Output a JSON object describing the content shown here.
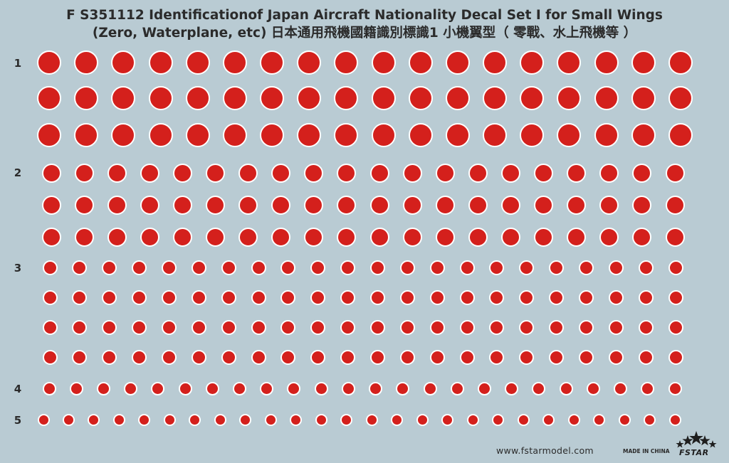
{
  "title": {
    "line1": "F S351112 Identificationof Japan Aircraft Nationality Decal Set I for Small Wings",
    "line2": "(Zero, Waterplane, etc) 日本通用飛機國籍識別標識1 小機翼型（ 零戰、水上飛機等 ）"
  },
  "groups": [
    {
      "label": "1",
      "rows": 3,
      "count": 18
    },
    {
      "label": "2",
      "rows": 3,
      "count": 20
    },
    {
      "label": "3",
      "rows": 4,
      "count": 22
    },
    {
      "label": "4",
      "rows": 1,
      "count": 24
    },
    {
      "label": "5",
      "rows": 1,
      "count": 26
    }
  ],
  "footer": {
    "website": "www.fstarmodel.com",
    "made_in": "MADE IN CHINA",
    "brand": "FSTAR",
    "logo_icon": "five-stars-icon"
  },
  "colors": {
    "background": "#b9cbd3",
    "roundel_red": "#d4201c",
    "roundel_border": "#ffffff",
    "text": "#2b2b2b"
  }
}
